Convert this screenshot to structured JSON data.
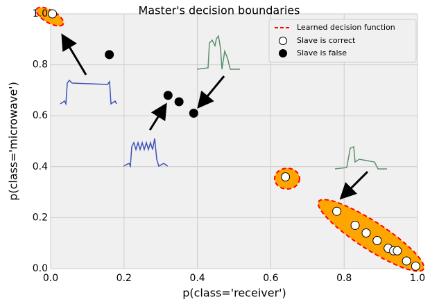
{
  "chart_data": {
    "type": "scatter",
    "title": "Master's decision boundaries",
    "x_label": "p(class='receiver')",
    "y_label": "p(class='microwave')",
    "xlim": [
      0,
      1
    ],
    "ylim": [
      0,
      1
    ],
    "xticks": [
      {
        "value": 0,
        "label": "0.0"
      },
      0.2,
      0.4,
      0.6,
      0.8,
      {
        "value": 1,
        "label": "1.0"
      }
    ],
    "yticks": [
      {
        "value": 0,
        "label": "0.0"
      },
      0.2,
      0.4,
      0.6,
      0.8,
      {
        "value": 1,
        "label": "1.0"
      }
    ],
    "grid": true,
    "legend": "upper right",
    "boundary": {
      "name": "Learned decision function",
      "color": "#ff0000"
    },
    "series": [
      {
        "name": "Slave is correct",
        "color": "#ffffff",
        "x": [
          0.005,
          0.64,
          0.78,
          0.83,
          0.86,
          0.89,
          0.92,
          0.935,
          0.945,
          0.97,
          0.995
        ],
        "values": [
          1.0,
          0.36,
          0.225,
          0.17,
          0.14,
          0.11,
          0.08,
          0.07,
          0.07,
          0.03,
          0.01
        ]
      },
      {
        "name": "Slave is false",
        "color": "#000000",
        "x": [
          0.16,
          0.32,
          0.35,
          0.39
        ],
        "values": [
          0.84,
          0.68,
          0.655,
          0.61
        ]
      }
    ]
  }
}
